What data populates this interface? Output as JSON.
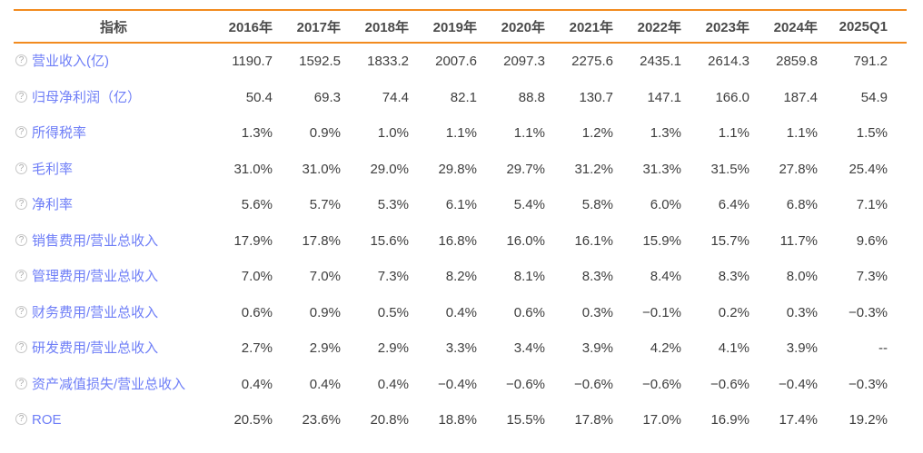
{
  "colors": {
    "accent_orange": "#f28b1f",
    "label_blue": "#6e7ef7",
    "value_gray": "#3e3e3e",
    "header_gray": "#4a4a4a"
  },
  "icons": {
    "help_glyph": "?"
  },
  "chart_data": {
    "type": "table",
    "title": "",
    "index_label": "指标",
    "columns": [
      "2016年",
      "2017年",
      "2018年",
      "2019年",
      "2020年",
      "2021年",
      "2022年",
      "2023年",
      "2024年",
      "2025Q1"
    ],
    "rows": [
      {
        "label": "营业收入(亿)",
        "values": [
          "1190.7",
          "1592.5",
          "1833.2",
          "2007.6",
          "2097.3",
          "2275.6",
          "2435.1",
          "2614.3",
          "2859.8",
          "791.2"
        ]
      },
      {
        "label": "归母净利润（亿）",
        "values": [
          "50.4",
          "69.3",
          "74.4",
          "82.1",
          "88.8",
          "130.7",
          "147.1",
          "166.0",
          "187.4",
          "54.9"
        ]
      },
      {
        "label": "所得税率",
        "values": [
          "1.3%",
          "0.9%",
          "1.0%",
          "1.1%",
          "1.1%",
          "1.2%",
          "1.3%",
          "1.1%",
          "1.1%",
          "1.5%"
        ]
      },
      {
        "label": "毛利率",
        "values": [
          "31.0%",
          "31.0%",
          "29.0%",
          "29.8%",
          "29.7%",
          "31.2%",
          "31.3%",
          "31.5%",
          "27.8%",
          "25.4%"
        ]
      },
      {
        "label": "净利率",
        "values": [
          "5.6%",
          "5.7%",
          "5.3%",
          "6.1%",
          "5.4%",
          "5.8%",
          "6.0%",
          "6.4%",
          "6.8%",
          "7.1%"
        ]
      },
      {
        "label": "销售费用/营业总收入",
        "values": [
          "17.9%",
          "17.8%",
          "15.6%",
          "16.8%",
          "16.0%",
          "16.1%",
          "15.9%",
          "15.7%",
          "11.7%",
          "9.6%"
        ]
      },
      {
        "label": "管理费用/营业总收入",
        "values": [
          "7.0%",
          "7.0%",
          "7.3%",
          "8.2%",
          "8.1%",
          "8.3%",
          "8.4%",
          "8.3%",
          "8.0%",
          "7.3%"
        ]
      },
      {
        "label": "财务费用/营业总收入",
        "values": [
          "0.6%",
          "0.9%",
          "0.5%",
          "0.4%",
          "0.6%",
          "0.3%",
          "−0.1%",
          "0.2%",
          "0.3%",
          "−0.3%"
        ]
      },
      {
        "label": "研发费用/营业总收入",
        "values": [
          "2.7%",
          "2.9%",
          "2.9%",
          "3.3%",
          "3.4%",
          "3.9%",
          "4.2%",
          "4.1%",
          "3.9%",
          "--"
        ]
      },
      {
        "label": "资产减值损失/营业总收入",
        "values": [
          "0.4%",
          "0.4%",
          "0.4%",
          "−0.4%",
          "−0.6%",
          "−0.6%",
          "−0.6%",
          "−0.6%",
          "−0.4%",
          "−0.3%"
        ]
      },
      {
        "label": "ROE",
        "values": [
          "20.5%",
          "23.6%",
          "20.8%",
          "18.8%",
          "15.5%",
          "17.8%",
          "17.0%",
          "16.9%",
          "17.4%",
          "19.2%"
        ]
      }
    ]
  }
}
